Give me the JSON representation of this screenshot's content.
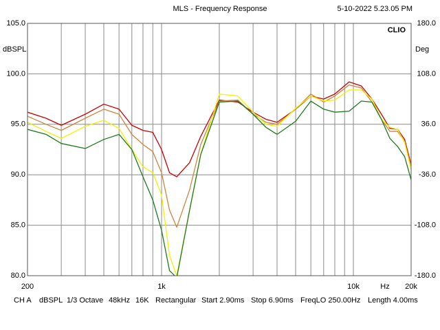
{
  "chart_data": {
    "type": "line",
    "title": "MLS - Frequency Response",
    "timestamp": "5-10-2022 5.23.05 PM",
    "brand": "CLIO",
    "ylabel": "dBSPL",
    "y2label": "Deg",
    "xlabel": "Hz",
    "xscale": "log",
    "grid": true,
    "xlim": [
      200,
      20000
    ],
    "ylim": [
      80,
      105
    ],
    "y2lim": [
      -180,
      180
    ],
    "xticks": [
      200,
      {
        "value": 1000,
        "label": "1k"
      },
      {
        "value": 10000,
        "label": "10k"
      },
      {
        "value": 20000,
        "label": "20k"
      }
    ],
    "xminorticks": [
      300,
      400,
      500,
      600,
      700,
      800,
      900,
      2000,
      3000,
      4000,
      5000,
      6000,
      7000,
      8000,
      9000
    ],
    "yticks": [
      {
        "value": 80,
        "label": "80.0"
      },
      {
        "value": 85,
        "label": "85.0"
      },
      {
        "value": 90,
        "label": "90.0"
      },
      {
        "value": 95,
        "label": "95.0"
      },
      {
        "value": 100,
        "label": "100.0"
      },
      {
        "value": 105,
        "label": "105.0"
      }
    ],
    "y2ticks": [
      {
        "value": -180,
        "label": "-180.0"
      },
      {
        "value": -108,
        "label": "-108.0"
      },
      {
        "value": -36,
        "label": "-36.0"
      },
      {
        "value": 36,
        "label": "36.0"
      },
      {
        "value": 108,
        "label": "108.0"
      },
      {
        "value": 180,
        "label": "180.0"
      }
    ],
    "x": [
      200,
      250,
      300,
      400,
      500,
      600,
      700,
      800,
      900,
      1000,
      1100,
      1200,
      1400,
      1600,
      2000,
      2500,
      3000,
      3500,
      4000,
      5000,
      6000,
      7000,
      8000,
      9500,
      11000,
      12500,
      14000,
      15500,
      17000,
      18500,
      20000
    ],
    "series": [
      {
        "color": "#c80000",
        "values": [
          96.2,
          95.6,
          94.9,
          96.0,
          97.0,
          96.5,
          94.9,
          94.4,
          94.2,
          92.5,
          90.2,
          89.8,
          91.2,
          93.8,
          97.4,
          97.2,
          96.2,
          95.5,
          95.2,
          96.5,
          97.8,
          97.5,
          98.0,
          99.2,
          98.8,
          97.5,
          96.0,
          94.6,
          94.5,
          93.5,
          91.0
        ]
      },
      {
        "color": "#d0843a",
        "values": [
          95.8,
          95.0,
          94.4,
          95.6,
          96.5,
          96.0,
          94.0,
          93.0,
          92.3,
          90.2,
          86.5,
          84.8,
          88.5,
          93.0,
          97.3,
          97.4,
          96.0,
          95.2,
          95.0,
          96.5,
          98.0,
          97.2,
          97.8,
          98.9,
          98.6,
          97.2,
          95.5,
          94.3,
          94.3,
          93.3,
          90.8
        ]
      },
      {
        "color": "#f2f200",
        "values": [
          95.2,
          94.3,
          93.6,
          94.8,
          95.4,
          94.6,
          92.5,
          90.8,
          90.2,
          88.0,
          82.0,
          80.0,
          86.5,
          92.0,
          98.0,
          97.8,
          96.2,
          95.0,
          94.8,
          96.6,
          97.8,
          97.3,
          97.4,
          98.4,
          98.4,
          97.5,
          95.5,
          94.7,
          94.5,
          93.2,
          90.5
        ]
      },
      {
        "color": "#1c7a1c",
        "values": [
          94.5,
          94.0,
          93.1,
          92.6,
          93.5,
          94.0,
          92.5,
          89.8,
          87.5,
          84.5,
          80.5,
          79.8,
          86.5,
          92.0,
          97.2,
          97.3,
          96.0,
          94.7,
          94.0,
          95.3,
          97.3,
          96.5,
          96.2,
          96.3,
          97.3,
          97.2,
          95.5,
          93.6,
          92.8,
          91.8,
          89.5
        ]
      }
    ],
    "info": [
      "CH A",
      "dBSPL",
      "1/3 Octave",
      "48kHz",
      "16K",
      "Rectangular",
      "Start 2.90ms",
      "Stop 6.90ms",
      "FreqLO 250.00Hz",
      "Length 4.00ms"
    ]
  }
}
